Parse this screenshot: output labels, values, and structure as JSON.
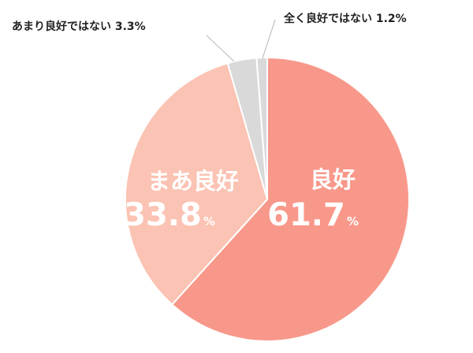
{
  "chart_data": {
    "type": "pie",
    "title": "",
    "start": "top",
    "direction": "clockwise",
    "legend": "none",
    "slices": [
      {
        "name": "良好",
        "value": 61.7,
        "unit": "%",
        "label_style": "inside",
        "color": "#f8988a"
      },
      {
        "name": "まあ良好",
        "value": 33.8,
        "unit": "%",
        "label_style": "inside",
        "color": "#fbc3b3"
      },
      {
        "name": "あまり良好ではない",
        "value": 3.3,
        "unit": "%",
        "label_style": "outside",
        "color": "#d9d9d9"
      },
      {
        "name": "全く良好ではない",
        "value": 1.2,
        "unit": "%",
        "label_style": "outside",
        "color": "#d9d9d9"
      }
    ],
    "slice_border_color": "#ffffff",
    "leader_line_color": "#bfbfbf"
  }
}
